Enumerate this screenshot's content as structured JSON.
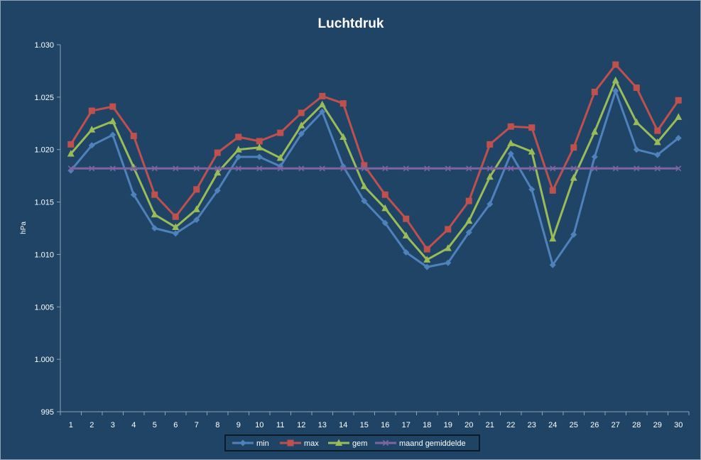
{
  "chart_data": {
    "type": "line",
    "title": "Luchtdruk",
    "xlabel": "",
    "ylabel": "hPa",
    "ylim": [
      995,
      1030
    ],
    "yticks": [
      995,
      1000,
      1005,
      1010,
      1015,
      1020,
      1025,
      1030
    ],
    "ytick_labels": [
      "995",
      "1.000",
      "1.005",
      "1.010",
      "1.015",
      "1.020",
      "1.025",
      "1.030"
    ],
    "categories": [
      "1",
      "2",
      "3",
      "4",
      "5",
      "6",
      "7",
      "8",
      "9",
      "10",
      "11",
      "12",
      "13",
      "14",
      "15",
      "16",
      "17",
      "18",
      "19",
      "20",
      "21",
      "22",
      "23",
      "24",
      "25",
      "26",
      "27",
      "28",
      "29",
      "30"
    ],
    "grid": false,
    "legend_position": "bottom",
    "series": [
      {
        "name": "min",
        "color": "#4f81bd",
        "marker": "diamond",
        "values": [
          1018.0,
          1020.4,
          1021.4,
          1015.7,
          1012.5,
          1012.0,
          1013.3,
          1016.1,
          1019.3,
          1019.3,
          1018.4,
          1021.5,
          1023.6,
          1018.4,
          1015.1,
          1013.0,
          1010.2,
          1008.8,
          1009.2,
          1012.1,
          1014.8,
          1019.6,
          1016.2,
          1009.0,
          1011.9,
          1019.3,
          1025.6,
          1020.0,
          1019.5,
          1021.1
        ]
      },
      {
        "name": "max",
        "color": "#c0504d",
        "marker": "square",
        "values": [
          1020.5,
          1023.7,
          1024.1,
          1021.3,
          1015.7,
          1013.6,
          1016.2,
          1019.7,
          1021.2,
          1020.8,
          1021.6,
          1023.5,
          1025.1,
          1024.4,
          1018.5,
          1015.7,
          1013.4,
          1010.5,
          1012.4,
          1015.1,
          1020.5,
          1022.2,
          1022.1,
          1016.1,
          1020.2,
          1025.5,
          1028.1,
          1025.9,
          1021.8,
          1024.7
        ]
      },
      {
        "name": "gem",
        "color": "#9bbb59",
        "marker": "triangle",
        "values": [
          1019.6,
          1021.9,
          1022.7,
          1018.3,
          1013.8,
          1012.6,
          1014.3,
          1017.8,
          1020.0,
          1020.2,
          1019.2,
          1022.3,
          1024.3,
          1021.2,
          1016.5,
          1014.4,
          1011.8,
          1009.5,
          1010.6,
          1013.2,
          1017.4,
          1020.6,
          1019.8,
          1011.5,
          1017.3,
          1021.7,
          1026.6,
          1022.6,
          1020.7,
          1023.1
        ]
      },
      {
        "name": "maand gemiddelde",
        "color": "#8064a2",
        "marker": "x",
        "values": [
          1018.2,
          1018.2,
          1018.2,
          1018.2,
          1018.2,
          1018.2,
          1018.2,
          1018.2,
          1018.2,
          1018.2,
          1018.2,
          1018.2,
          1018.2,
          1018.2,
          1018.2,
          1018.2,
          1018.2,
          1018.2,
          1018.2,
          1018.2,
          1018.2,
          1018.2,
          1018.2,
          1018.2,
          1018.2,
          1018.2,
          1018.2,
          1018.2,
          1018.2,
          1018.2
        ]
      }
    ]
  },
  "colors": {
    "background": "#1f4466",
    "axis": "#8fa3b8",
    "text": "#ffffff",
    "legend_background": "#1f4466",
    "legend_border": "#000000"
  }
}
